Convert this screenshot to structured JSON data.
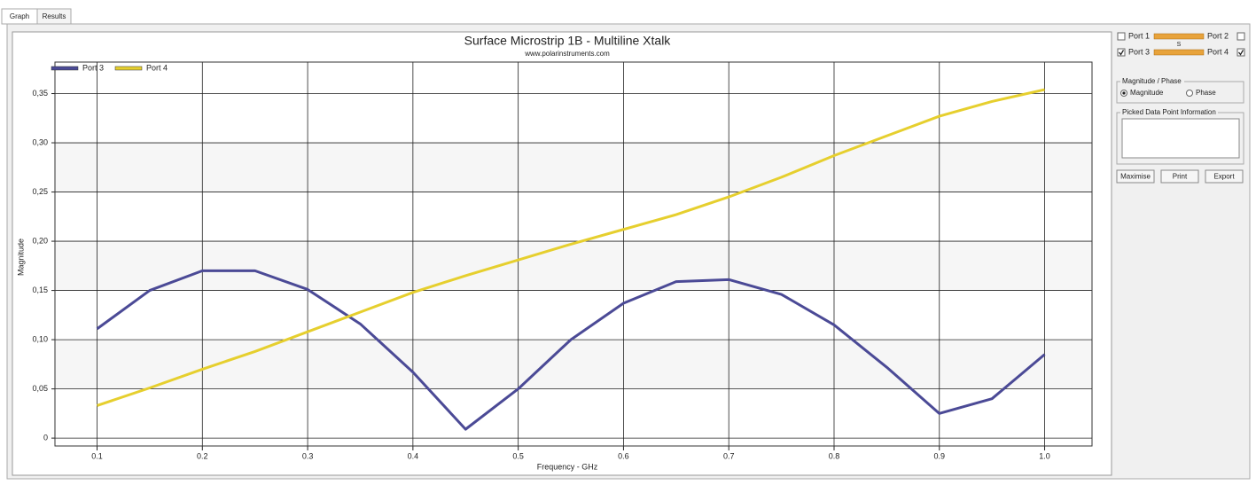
{
  "tabs": [
    "Graph",
    "Results"
  ],
  "chart_data": {
    "type": "line",
    "title": "Surface Microstrip 1B - Multiline Xtalk",
    "subtitle": "www.polarinstruments.com",
    "x_label": "Frequency - GHz",
    "y_label": "Magnitude",
    "x": [
      0.1,
      0.15,
      0.2,
      0.25,
      0.3,
      0.35,
      0.4,
      0.45,
      0.5,
      0.55,
      0.6,
      0.65,
      0.7,
      0.75,
      0.8,
      0.85,
      0.9,
      0.95,
      1.0
    ],
    "series": [
      {
        "name": "Port 3",
        "color": "#4b4a96",
        "values": [
          0.111,
          0.15,
          0.17,
          0.17,
          0.151,
          0.116,
          0.067,
          0.009,
          0.05,
          0.1,
          0.137,
          0.159,
          0.161,
          0.146,
          0.115,
          0.072,
          0.025,
          0.04,
          0.085
        ]
      },
      {
        "name": "Port 4",
        "color": "#e6cf2e",
        "values": [
          0.033,
          0.051,
          0.07,
          0.088,
          0.108,
          0.128,
          0.148,
          0.165,
          0.181,
          0.197,
          0.212,
          0.227,
          0.245,
          0.265,
          0.287,
          0.307,
          0.327,
          0.342,
          0.354
        ]
      }
    ],
    "xlim": [
      0.06,
      1.045
    ],
    "ylim": [
      -0.008,
      0.382
    ],
    "xticks": [
      0.1,
      0.2,
      0.3,
      0.4,
      0.5,
      0.6,
      0.7,
      0.8,
      0.9,
      {
        "value": 1.0,
        "label": "1.0"
      }
    ],
    "yticks": [
      0,
      {
        "value": 0.05,
        "label": "0,05"
      },
      {
        "value": 0.1,
        "label": "0,10"
      },
      {
        "value": 0.15,
        "label": "0,15"
      },
      {
        "value": 0.2,
        "label": "0,20"
      },
      {
        "value": 0.25,
        "label": "0,25"
      },
      {
        "value": 0.3,
        "label": "0,30"
      },
      {
        "value": 0.35,
        "label": "0,35"
      }
    ],
    "grid": true,
    "legend": "top-left"
  },
  "side_panel": {
    "ports": [
      {
        "label": "Port 1",
        "checked": false
      },
      {
        "label": "Port 2",
        "checked": false
      },
      {
        "label": "Port 3",
        "checked": true
      },
      {
        "label": "Port 4",
        "checked": true
      }
    ],
    "link_label": "S",
    "magnitude_phase": {
      "title": "Magnitude / Phase",
      "options": [
        {
          "label": "Magnitude",
          "selected": true
        },
        {
          "label": "Phase",
          "selected": false
        }
      ]
    },
    "picked_info": {
      "title": "Picked Data Point Information"
    },
    "buttons": [
      "Maximise",
      "Print",
      "Export"
    ]
  }
}
